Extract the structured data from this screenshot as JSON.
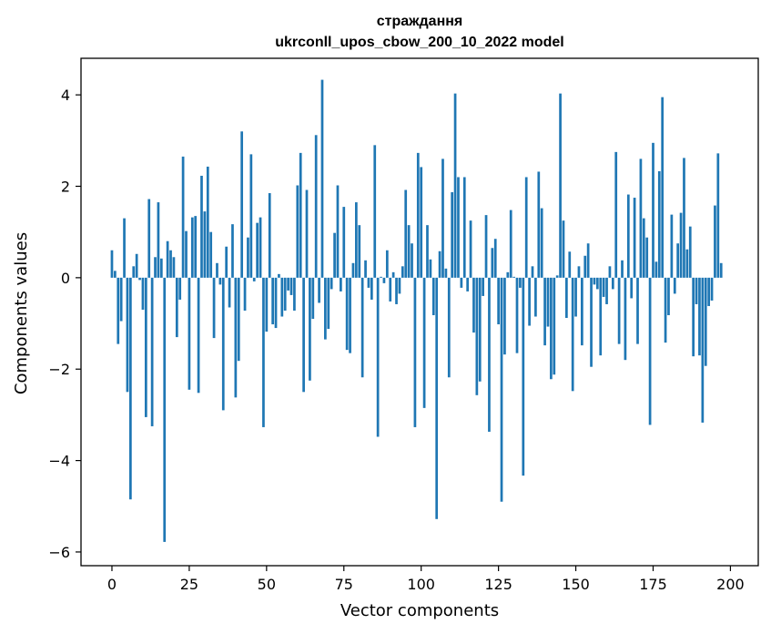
{
  "chart_data": {
    "type": "bar",
    "title": "страждання",
    "subtitle": "ukrconll_upos_cbow_200_10_2022 model",
    "xlabel": "Vector components",
    "ylabel": "Components values",
    "xlim": [
      -10,
      209
    ],
    "ylim": [
      -6.3,
      4.8
    ],
    "xticks": [
      0,
      25,
      50,
      75,
      100,
      125,
      150,
      175,
      200
    ],
    "xtick_labels": [
      "0",
      "25",
      "50",
      "75",
      "100",
      "125",
      "150",
      "175",
      "200"
    ],
    "yticks": [
      4,
      2,
      0,
      -2,
      -4,
      -6
    ],
    "ytick_labels": [
      "4",
      "2",
      "0",
      "−2",
      "−4",
      "−6"
    ],
    "grid": false,
    "bar_color": "#1f77b4",
    "values": [
      0.6,
      0.15,
      -1.45,
      -0.95,
      1.3,
      -2.5,
      -4.85,
      0.25,
      0.52,
      -0.05,
      -0.7,
      -3.05,
      1.72,
      -3.25,
      0.45,
      1.65,
      0.42,
      -5.78,
      0.8,
      0.6,
      0.45,
      -1.3,
      -0.48,
      2.65,
      1.02,
      -2.45,
      1.32,
      1.35,
      -2.52,
      2.23,
      1.45,
      2.43,
      1.0,
      -1.32,
      0.32,
      -0.15,
      -2.9,
      0.68,
      -0.65,
      1.17,
      -2.62,
      -1.82,
      3.2,
      -0.72,
      0.88,
      2.7,
      -0.08,
      1.2,
      1.32,
      -3.27,
      -1.18,
      1.85,
      -1.02,
      -1.1,
      0.08,
      -0.85,
      -0.72,
      -0.28,
      -0.38,
      -0.72,
      2.02,
      2.73,
      -2.5,
      1.92,
      -2.25,
      -0.9,
      3.12,
      -0.55,
      4.33,
      -1.35,
      -1.12,
      -0.25,
      0.98,
      2.02,
      -0.3,
      1.55,
      -1.58,
      -1.65,
      0.32,
      1.65,
      1.15,
      -2.18,
      0.38,
      -0.22,
      -0.48,
      2.9,
      -3.48,
      0.02,
      -0.12,
      0.6,
      -0.52,
      0.12,
      -0.58,
      -0.35,
      0.25,
      1.92,
      1.15,
      0.75,
      -3.27,
      2.73,
      2.42,
      -2.85,
      1.15,
      0.4,
      -0.82,
      -5.28,
      0.58,
      2.6,
      0.2,
      -2.18,
      1.87,
      4.03,
      2.2,
      -0.22,
      2.2,
      -0.3,
      1.25,
      -1.2,
      -2.57,
      -2.27,
      -0.4,
      1.37,
      -3.37,
      0.65,
      0.85,
      -1.02,
      -4.9,
      -1.68,
      0.12,
      1.48,
      0.02,
      -1.65,
      -0.22,
      -4.33,
      2.2,
      -1.05,
      0.25,
      -0.85,
      2.32,
      1.52,
      -1.48,
      -1.07,
      -2.22,
      -2.12,
      0.05,
      4.03,
      1.25,
      -0.88,
      0.57,
      -2.48,
      -0.85,
      0.25,
      -1.48,
      0.48,
      0.75,
      -1.95,
      -0.15,
      -0.25,
      -1.7,
      -0.42,
      -0.58,
      0.25,
      -0.25,
      2.75,
      -1.45,
      0.38,
      -1.8,
      1.82,
      -0.45,
      1.75,
      -1.45,
      2.6,
      1.3,
      0.88,
      -3.22,
      2.95,
      0.35,
      2.33,
      3.95,
      -1.42,
      -0.82,
      1.38,
      -0.35,
      0.75,
      1.42,
      2.62,
      0.62,
      1.12,
      -1.72,
      -0.58,
      -1.7,
      -3.17,
      -1.93,
      -0.62,
      -0.5,
      1.58,
      2.72,
      0.32
    ]
  }
}
